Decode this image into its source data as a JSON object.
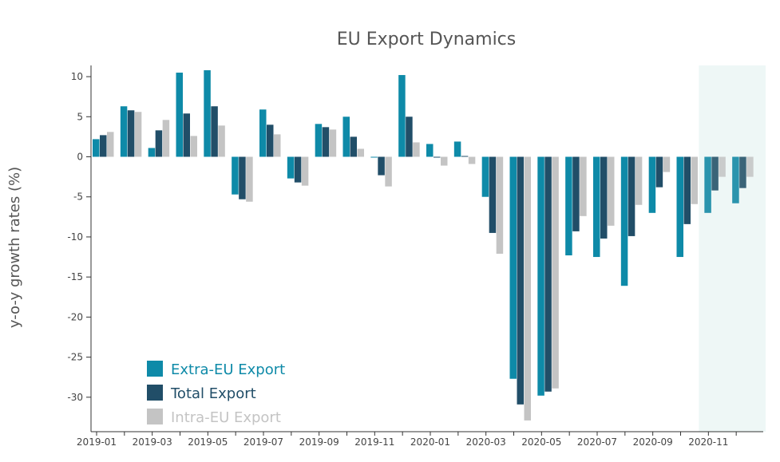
{
  "chart_data": {
    "type": "bar",
    "title": "EU Export Dynamics",
    "ylabel": "y-o-y growth rates (%)",
    "xlabel": "",
    "ylim": [
      -34.3,
      11.4
    ],
    "yticks": [
      10,
      5,
      0,
      -5,
      -10,
      -15,
      -20,
      -25,
      -30
    ],
    "xtick_labels": [
      "2019-01",
      "2019-03",
      "2019-05",
      "2019-07",
      "2019-09",
      "2019-11",
      "2020-01",
      "2020-03",
      "2020-05",
      "2020-07",
      "2020-09",
      "2020-11"
    ],
    "categories": [
      "2019-01",
      "2019-02",
      "2019-03",
      "2019-04",
      "2019-05",
      "2019-06",
      "2019-07",
      "2019-08",
      "2019-09",
      "2019-10",
      "2019-11",
      "2019-12",
      "2020-01",
      "2020-02",
      "2020-03",
      "2020-04",
      "2020-05",
      "2020-06",
      "2020-07",
      "2020-08",
      "2020-09",
      "2020-10",
      "2020-11",
      "2020-12"
    ],
    "highlight": {
      "from": "2020-11",
      "to": "2020-12"
    },
    "legend": "bottom-left",
    "series": [
      {
        "name": "Extra-EU Export",
        "color": "#0e8aa8",
        "values": [
          2.2,
          6.3,
          1.1,
          10.5,
          10.8,
          -4.7,
          5.9,
          -2.7,
          4.1,
          5.0,
          -0.1,
          10.2,
          1.6,
          1.9,
          -5.0,
          -27.7,
          -29.8,
          -12.3,
          -12.5,
          -16.1,
          -7.0,
          -12.5,
          -7.0,
          -5.8
        ]
      },
      {
        "name": "Total Export",
        "color": "#214e68",
        "values": [
          2.7,
          5.8,
          3.3,
          5.4,
          6.3,
          -5.3,
          4.0,
          -3.2,
          3.7,
          2.5,
          -2.3,
          5.0,
          -0.1,
          0.1,
          -9.5,
          -30.9,
          -29.3,
          -9.3,
          -10.2,
          -9.9,
          -3.8,
          -8.4,
          -4.2,
          -3.9
        ]
      },
      {
        "name": "Intra-EU Export",
        "color": "#c4c4c4",
        "values": [
          3.1,
          5.6,
          4.6,
          2.6,
          3.9,
          -5.6,
          2.8,
          -3.6,
          3.4,
          1.0,
          -3.7,
          1.8,
          -1.1,
          -0.9,
          -12.1,
          -32.9,
          -28.9,
          -7.4,
          -8.6,
          -6.0,
          -1.9,
          -5.9,
          -2.5,
          -2.5
        ]
      }
    ]
  }
}
